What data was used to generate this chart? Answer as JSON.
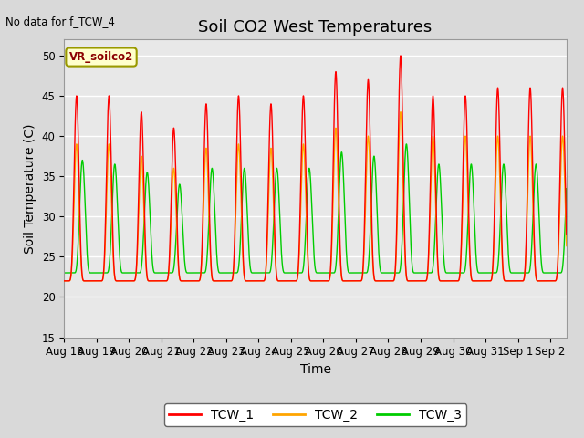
{
  "title": "Soil CO2 West Temperatures",
  "xlabel": "Time",
  "ylabel": "Soil Temperature (C)",
  "no_data_text": "No data for f_TCW_4",
  "vr_label": "VR_soilco2",
  "ylim": [
    15,
    52
  ],
  "yticks": [
    15,
    20,
    25,
    30,
    35,
    40,
    45,
    50
  ],
  "xtick_labels": [
    "Aug 18",
    "Aug 19",
    "Aug 20",
    "Aug 21",
    "Aug 22",
    "Aug 23",
    "Aug 24",
    "Aug 25",
    "Aug 26",
    "Aug 27",
    "Aug 28",
    "Aug 29",
    "Aug 30",
    "Aug 31",
    "Sep 1",
    "Sep 2"
  ],
  "colors": {
    "TCW_1": "#ff0000",
    "TCW_2": "#ffa500",
    "TCW_3": "#00cc00"
  },
  "peaks_tcw1": [
    45,
    45,
    43,
    41,
    44,
    45,
    44,
    45,
    48,
    47,
    50,
    45,
    45,
    46,
    46,
    46
  ],
  "peaks_tcw2": [
    39,
    39,
    37.5,
    36,
    38.5,
    39,
    38.5,
    39,
    41,
    40,
    43,
    40,
    40,
    40,
    40,
    40
  ],
  "peaks_tcw3": [
    37,
    36.5,
    35.5,
    34,
    36,
    36,
    36,
    36,
    38,
    37.5,
    39,
    36.5,
    36.5,
    36.5,
    36.5,
    36.5
  ],
  "trough_tcw1": 22.0,
  "trough_tcw2": 22.0,
  "trough_tcw3": 23.0,
  "tcw3_lag": 0.18,
  "background_color": "#d9d9d9",
  "plot_bg_color": "#e8e8e8",
  "grid_color": "#ffffff",
  "title_fontsize": 13,
  "axis_label_fontsize": 10,
  "tick_fontsize": 8.5
}
